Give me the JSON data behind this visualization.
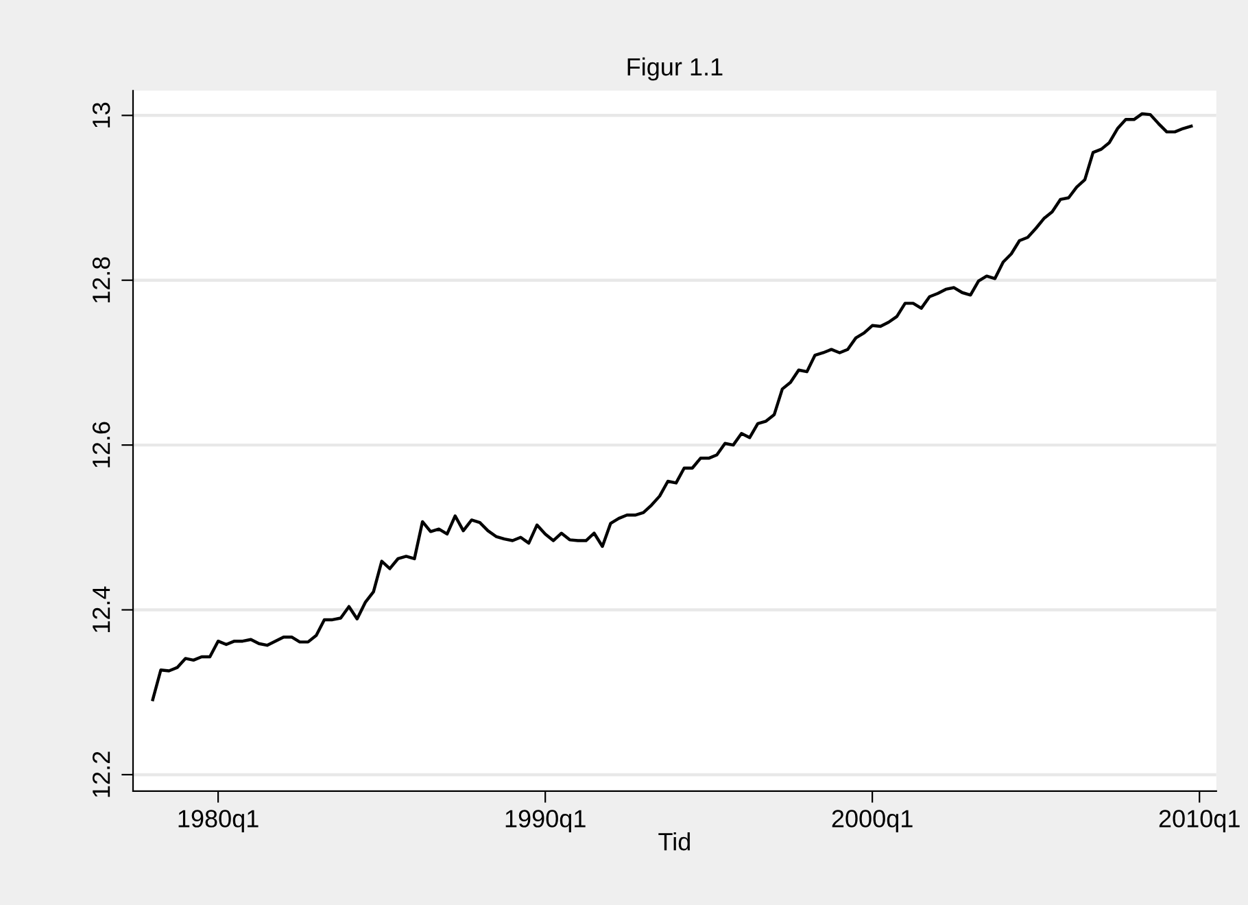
{
  "chart_data": {
    "type": "line",
    "title": "Figur 1.1",
    "xlabel": "Tid",
    "x": [
      "1978-01",
      "1978-04",
      "1978-07",
      "1978-10",
      "1979-01",
      "1979-04",
      "1979-07",
      "1979-10",
      "1980-01",
      "1980-04",
      "1980-07",
      "1980-10",
      "1981-01",
      "1981-04",
      "1981-07",
      "1981-10",
      "1982-01",
      "1982-04",
      "1982-07",
      "1982-10",
      "1983-01",
      "1983-04",
      "1983-07",
      "1983-10",
      "1984-01",
      "1984-04",
      "1984-07",
      "1984-10",
      "1985-01",
      "1985-04",
      "1985-07",
      "1985-10",
      "1986-01",
      "1986-04",
      "1986-07",
      "1986-10",
      "1987-01",
      "1987-04",
      "1987-07",
      "1987-10",
      "1988-01",
      "1988-04",
      "1988-07",
      "1988-10",
      "1989-01",
      "1989-04",
      "1989-07",
      "1989-10",
      "1990-01",
      "1990-04",
      "1990-07",
      "1990-10",
      "1991-01",
      "1991-04",
      "1991-07",
      "1991-10",
      "1992-01",
      "1992-04",
      "1992-07",
      "1992-10",
      "1993-01",
      "1993-04",
      "1993-07",
      "1993-10",
      "1994-01",
      "1994-04",
      "1994-07",
      "1994-10",
      "1995-01",
      "1995-04",
      "1995-07",
      "1995-10",
      "1996-01",
      "1996-04",
      "1996-07",
      "1996-10",
      "1997-01",
      "1997-04",
      "1997-07",
      "1997-10",
      "1998-01",
      "1998-04",
      "1998-07",
      "1998-10",
      "1999-01",
      "1999-04",
      "1999-07",
      "1999-10",
      "2000-01",
      "2000-04",
      "2000-07",
      "2000-10",
      "2001-01",
      "2001-04",
      "2001-07",
      "2001-10",
      "2002-01",
      "2002-04",
      "2002-07",
      "2002-10",
      "2003-01",
      "2003-04",
      "2003-07",
      "2003-10",
      "2004-01",
      "2004-04",
      "2004-07",
      "2004-10",
      "2005-01",
      "2005-04",
      "2005-07",
      "2005-10",
      "2006-01",
      "2006-04",
      "2006-07",
      "2006-10",
      "2007-01",
      "2007-04",
      "2007-07",
      "2007-10",
      "2008-01",
      "2008-04",
      "2008-07",
      "2008-10",
      "2009-01",
      "2009-04",
      "2009-07",
      "2009-10"
    ],
    "series": [
      {
        "color": "#000000",
        "values": [
          12.291,
          12.327,
          12.326,
          12.33,
          12.341,
          12.339,
          12.343,
          12.343,
          12.362,
          12.358,
          12.362,
          12.362,
          12.364,
          12.359,
          12.357,
          12.362,
          12.367,
          12.367,
          12.361,
          12.361,
          12.369,
          12.388,
          12.388,
          12.39,
          12.404,
          12.389,
          12.409,
          12.422,
          12.459,
          12.45,
          12.462,
          12.465,
          12.462,
          12.507,
          12.495,
          12.498,
          12.492,
          12.514,
          12.496,
          12.509,
          12.506,
          12.496,
          12.489,
          12.486,
          12.484,
          12.488,
          12.481,
          12.503,
          12.492,
          12.484,
          12.493,
          12.485,
          12.484,
          12.484,
          12.493,
          12.477,
          12.505,
          12.511,
          12.515,
          12.515,
          12.518,
          12.527,
          12.538,
          12.556,
          12.554,
          12.572,
          12.572,
          12.584,
          12.584,
          12.588,
          12.602,
          12.6,
          12.614,
          12.609,
          12.626,
          12.629,
          12.637,
          12.668,
          12.676,
          12.691,
          12.689,
          12.709,
          12.712,
          12.716,
          12.712,
          12.716,
          12.73,
          12.736,
          12.745,
          12.744,
          12.749,
          12.756,
          12.772,
          12.772,
          12.766,
          12.78,
          12.784,
          12.789,
          12.791,
          12.785,
          12.782,
          12.799,
          12.805,
          12.802,
          12.822,
          12.832,
          12.848,
          12.852,
          12.863,
          12.875,
          12.883,
          12.898,
          12.9,
          12.913,
          12.922,
          12.955,
          12.959,
          12.967,
          12.984,
          12.995,
          12.995,
          13.002,
          13.001,
          12.99,
          12.98,
          12.98,
          12.984,
          12.987
        ]
      }
    ],
    "xlim": [
      "1977-05-26",
      "2010-07-08"
    ],
    "ylim": [
      12.18,
      13.03
    ],
    "xticks": [
      {
        "value": "1980-01-01",
        "label": "1980q1"
      },
      {
        "value": "1990-01-01",
        "label": "1990q1"
      },
      {
        "value": "2000-01-01",
        "label": "2000q1"
      },
      {
        "value": "2010-01-01",
        "label": "2010q1"
      }
    ],
    "yticks": [
      {
        "value": 12.2,
        "label": "12.2"
      },
      {
        "value": 12.4,
        "label": "12.4"
      },
      {
        "value": 12.6,
        "label": "12.6"
      },
      {
        "value": 12.8,
        "label": "12.8"
      },
      {
        "value": 13,
        "label": "13"
      }
    ],
    "grid": "y",
    "marker": "none",
    "line_style": "solid"
  }
}
